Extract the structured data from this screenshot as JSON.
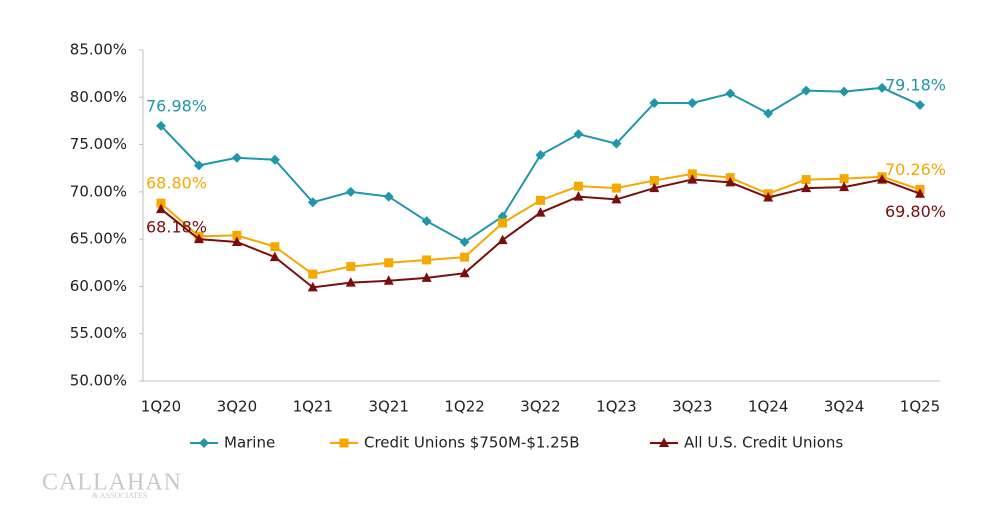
{
  "chart_data": {
    "type": "line",
    "categories": [
      "1Q20",
      null,
      "3Q20",
      null,
      "1Q21",
      null,
      "3Q21",
      null,
      "1Q22",
      null,
      "3Q22",
      null,
      "1Q23",
      null,
      "3Q23",
      null,
      "1Q24",
      null,
      "3Q24",
      null,
      "1Q25"
    ],
    "series": [
      {
        "name": "Marine",
        "color": "#1f97a8",
        "marker": "diamond",
        "values": [
          76.98,
          72.8,
          73.6,
          73.4,
          68.9,
          70.0,
          69.5,
          66.9,
          64.7,
          67.4,
          73.9,
          76.1,
          75.1,
          79.4,
          79.4,
          80.4,
          78.3,
          80.7,
          80.6,
          81.0,
          79.18
        ],
        "value_labels": [
          "76.98%",
          null,
          null,
          null,
          null,
          null,
          null,
          null,
          null,
          null,
          null,
          null,
          null,
          null,
          null,
          null,
          null,
          null,
          null,
          null,
          "79.18%"
        ]
      },
      {
        "name": "Credit Unions $750M-$1.25B",
        "color": "#f5a800",
        "marker": "square",
        "values": [
          68.8,
          65.3,
          65.4,
          64.2,
          61.3,
          62.1,
          62.5,
          62.8,
          63.1,
          66.7,
          69.1,
          70.6,
          70.4,
          71.2,
          71.9,
          71.5,
          69.8,
          71.3,
          71.4,
          71.6,
          70.26
        ],
        "value_labels": [
          "68.80%",
          null,
          null,
          null,
          null,
          null,
          null,
          null,
          null,
          null,
          null,
          null,
          null,
          null,
          null,
          null,
          null,
          null,
          null,
          null,
          "70.26%"
        ]
      },
      {
        "name": "All U.S. Credit Unions",
        "color": "#7a0e0e",
        "marker": "triangle",
        "values": [
          68.18,
          65.0,
          64.7,
          63.1,
          59.9,
          60.4,
          60.6,
          60.9,
          61.4,
          64.9,
          67.8,
          69.5,
          69.2,
          70.4,
          71.3,
          71.0,
          69.4,
          70.4,
          70.5,
          71.3,
          69.8
        ],
        "value_labels": [
          "68.18%",
          null,
          null,
          null,
          null,
          null,
          null,
          null,
          null,
          null,
          null,
          null,
          null,
          null,
          null,
          null,
          null,
          null,
          null,
          null,
          "69.80%"
        ]
      }
    ],
    "ylim": [
      50,
      85
    ],
    "yticks": [
      {
        "value": 50,
        "label": "50.00%"
      },
      {
        "value": 55,
        "label": "55.00%"
      },
      {
        "value": 60,
        "label": "60.00%"
      },
      {
        "value": 65,
        "label": "65.00%"
      },
      {
        "value": 70,
        "label": "70.00%"
      },
      {
        "value": 75,
        "label": "75.00%"
      },
      {
        "value": 80,
        "label": "80.00%"
      },
      {
        "value": 85,
        "label": "85.00%"
      }
    ],
    "grid": false,
    "legend": "bottom",
    "watermark": [
      "CALLAHAN",
      "& ASSOCIATES"
    ]
  }
}
